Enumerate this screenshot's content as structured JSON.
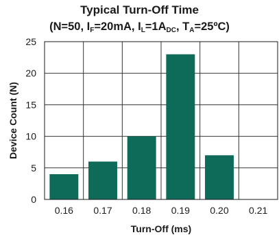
{
  "chart_data": {
    "type": "bar",
    "title": "Typical Turn-Off Time",
    "subtitle": {
      "open": "(N=50, I",
      "sub1": "F",
      "mid1": "=20mA, I",
      "sub2": "L",
      "mid2": "=1A",
      "sub3": "DC",
      "mid3": ", T",
      "sub4": "A",
      "close": "=25ºC)"
    },
    "xlabel": "Turn-Off (ms)",
    "ylabel": "Device Count (N)",
    "categories": [
      "0.16",
      "0.17",
      "0.18",
      "0.19",
      "0.20",
      "0.21"
    ],
    "values": [
      4,
      6,
      10,
      23,
      7,
      0
    ],
    "yticks": [
      0,
      5,
      10,
      15,
      20,
      25
    ],
    "ylim": [
      0,
      25
    ],
    "grid": true,
    "bar_color": "#0e6b59"
  }
}
